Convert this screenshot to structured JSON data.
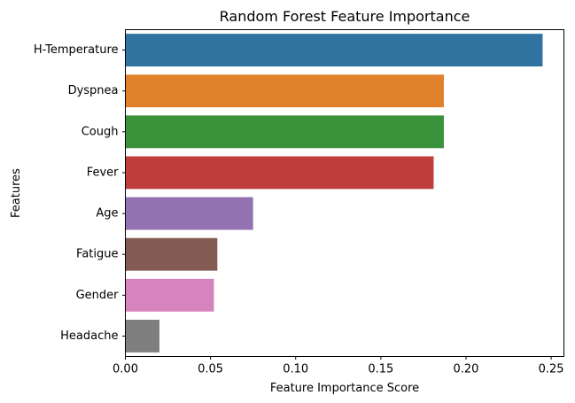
{
  "chart_data": {
    "type": "bar",
    "orientation": "horizontal",
    "title": "Random Forest Feature Importance",
    "xlabel": "Feature Importance Score",
    "ylabel": "Features",
    "categories": [
      "H-Temperature",
      "Dyspnea",
      "Cough",
      "Fever",
      "Age",
      "Fatigue",
      "Gender",
      "Headache"
    ],
    "values": [
      0.245,
      0.187,
      0.187,
      0.181,
      0.075,
      0.054,
      0.052,
      0.02
    ],
    "colors": [
      "#3274a1",
      "#e1812c",
      "#3a923a",
      "#c03d3e",
      "#9372b2",
      "#845b53",
      "#d684bd",
      "#7f7f7f"
    ],
    "xlim": [
      0,
      0.2575
    ],
    "xticks": [
      0.0,
      0.05,
      0.1,
      0.15,
      0.2,
      0.25
    ],
    "xtick_labels": [
      "0.00",
      "0.05",
      "0.10",
      "0.15",
      "0.20",
      "0.25"
    ],
    "grid": false,
    "legend": "none"
  }
}
